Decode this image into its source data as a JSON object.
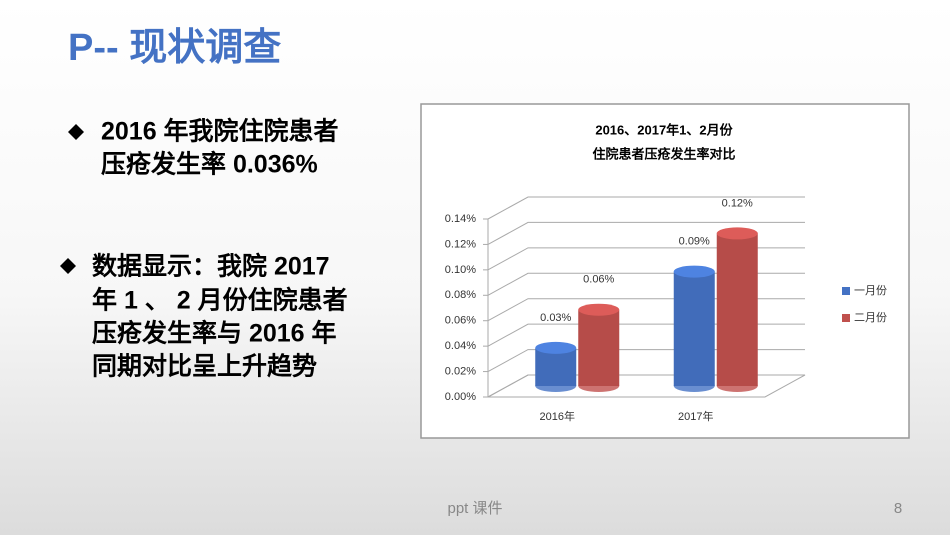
{
  "title": "P-- 现状调查",
  "bullets": [
    [
      "2016 年我院住院患者",
      "压疮发生率 0.036%"
    ],
    [
      "数据显示：我院 2017",
      "年 1 、 2 月份住院患者",
      "压疮发生率与 2016 年",
      "同期对比呈上升趋势"
    ]
  ],
  "footer": "ppt 课件",
  "page_number": "8",
  "chart_data": {
    "type": "bar",
    "title": [
      "2016、2017年1、2月份",
      "住院患者压疮发生率对比"
    ],
    "categories": [
      "2016年",
      "2017年"
    ],
    "series": [
      {
        "name": "一月份",
        "color": "#4472c4",
        "values": [
          0.03,
          0.09
        ],
        "value_labels": [
          "0.03%",
          "0.09%"
        ]
      },
      {
        "name": "二月份",
        "color": "#c0504d",
        "values": [
          0.06,
          0.12
        ],
        "value_labels": [
          "0.06%",
          "0.12%"
        ]
      }
    ],
    "ylim": [
      0,
      0.14
    ],
    "yticks": [
      {
        "value": 0,
        "label": "0.00%"
      },
      {
        "value": 0.02,
        "label": "0.02%"
      },
      {
        "value": 0.04,
        "label": "0.04%"
      },
      {
        "value": 0.06,
        "label": "0.06%"
      },
      {
        "value": 0.08,
        "label": "0.08%"
      },
      {
        "value": 0.1,
        "label": "0.10%"
      },
      {
        "value": 0.12,
        "label": "0.12%"
      },
      {
        "value": 0.14,
        "label": "0.14%"
      }
    ],
    "grid": true,
    "legend": "right"
  }
}
